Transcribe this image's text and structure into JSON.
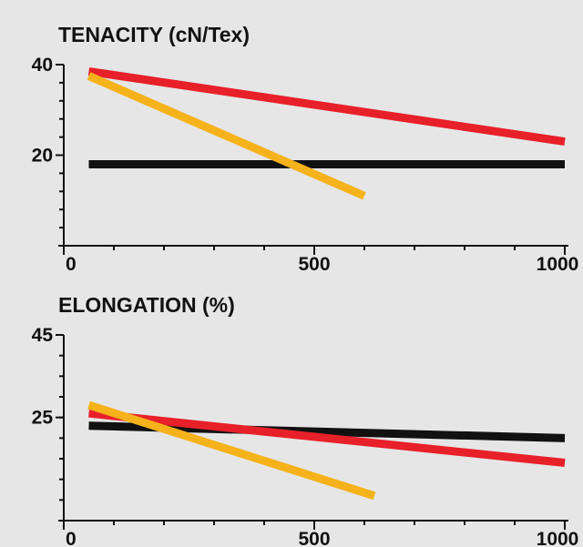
{
  "chart_data": [
    {
      "type": "line",
      "title": "TENACITY (cN/Tex)",
      "xlabel": "",
      "ylabel": "",
      "xlim": [
        0,
        1000
      ],
      "ylim": [
        0,
        40
      ],
      "x_ticks": [
        0,
        500,
        1000
      ],
      "x_tick_labels": [
        "0",
        "500",
        "1000"
      ],
      "y_ticks": [
        20,
        40
      ],
      "y_tick_labels": [
        "20",
        "40"
      ],
      "grid": false,
      "series": [
        {
          "color": "#111111",
          "x": [
            50,
            1000
          ],
          "y": [
            18,
            18
          ]
        },
        {
          "color": "#e8202a",
          "x": [
            50,
            1000
          ],
          "y": [
            38.5,
            23
          ]
        },
        {
          "color": "#f5b21a",
          "x": [
            50,
            600
          ],
          "y": [
            37.5,
            11
          ]
        }
      ]
    },
    {
      "type": "line",
      "title": "ELONGATION (%)",
      "xlabel": "",
      "ylabel": "",
      "xlim": [
        0,
        1000
      ],
      "ylim": [
        0,
        45
      ],
      "x_ticks": [
        0,
        500,
        1000
      ],
      "x_tick_labels": [
        "0",
        "500",
        "1000"
      ],
      "y_ticks": [
        25,
        45
      ],
      "y_tick_labels": [
        "25",
        "45"
      ],
      "grid": false,
      "series": [
        {
          "color": "#111111",
          "x": [
            50,
            1000
          ],
          "y": [
            23,
            20
          ]
        },
        {
          "color": "#e8202a",
          "x": [
            50,
            1000
          ],
          "y": [
            26,
            14
          ]
        },
        {
          "color": "#f5b21a",
          "x": [
            50,
            620
          ],
          "y": [
            28,
            6
          ]
        }
      ]
    }
  ]
}
